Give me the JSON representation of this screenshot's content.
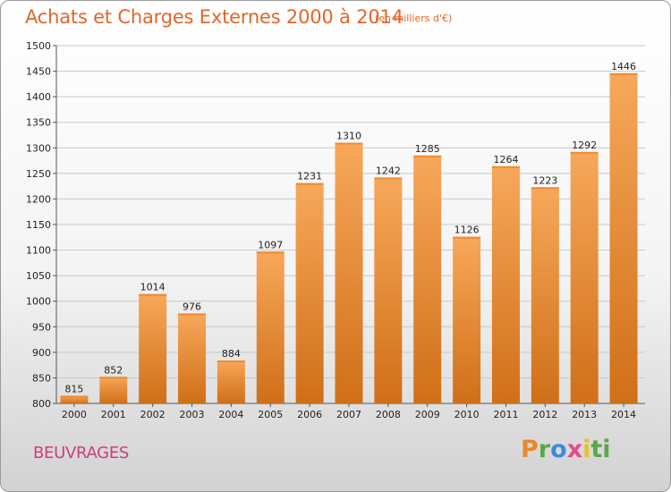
{
  "title": "Achats et Charges Externes 2000 à 2014",
  "subtitle": "(en milliers d'€)",
  "city": "BEUVRAGES",
  "logo": {
    "parts": [
      "P",
      "r",
      "o",
      "x",
      "i",
      "ti"
    ]
  },
  "colors": {
    "bar_light": "#f5a24e",
    "bar_dark": "#d06f18",
    "title": "#e2662a",
    "city": "#cc3e7a"
  },
  "chart_data": {
    "type": "bar",
    "categories": [
      "2000",
      "2001",
      "2002",
      "2003",
      "2004",
      "2005",
      "2006",
      "2007",
      "2008",
      "2009",
      "2010",
      "2011",
      "2012",
      "2013",
      "2014"
    ],
    "values": [
      815,
      852,
      1014,
      976,
      884,
      1097,
      1231,
      1310,
      1242,
      1285,
      1126,
      1264,
      1223,
      1292,
      1446
    ],
    "title": "Achats et Charges Externes 2000 à 2014",
    "ylim": [
      800,
      1500
    ],
    "yticks": [
      800,
      850,
      900,
      950,
      1000,
      1050,
      1100,
      1150,
      1200,
      1250,
      1300,
      1350,
      1400,
      1450,
      1500
    ],
    "grid": true
  }
}
